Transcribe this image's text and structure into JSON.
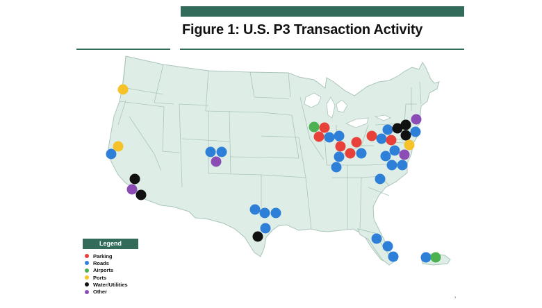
{
  "figure": {
    "title": "Figure 1: U.S. P3 Transaction Activity",
    "accent_color": "#336b5b",
    "map_fill": "#deeee7",
    "map_stroke": "#aac5b9"
  },
  "legend": {
    "title": "Legend",
    "items": [
      {
        "key": "parking",
        "label": "Parking",
        "color": "#e8413a"
      },
      {
        "key": "roads",
        "label": "Roads",
        "color": "#2e7fd8"
      },
      {
        "key": "airports",
        "label": "Airports",
        "color": "#4cb150"
      },
      {
        "key": "ports",
        "label": "Ports",
        "color": "#f6c22a"
      },
      {
        "key": "water",
        "label": "Water/Utilities",
        "color": "#111111"
      },
      {
        "key": "other",
        "label": "Other",
        "color": "#8b4db5"
      }
    ]
  },
  "markers": [
    {
      "type": "ports",
      "state": "OR"
    },
    {
      "type": "ports",
      "state": "CA-N"
    },
    {
      "type": "roads",
      "state": "CA-N"
    },
    {
      "type": "water",
      "state": "CA-S"
    },
    {
      "type": "other",
      "state": "CA-S"
    },
    {
      "type": "water",
      "state": "CA-S"
    },
    {
      "type": "roads",
      "state": "CO"
    },
    {
      "type": "roads",
      "state": "CO"
    },
    {
      "type": "other",
      "state": "CO"
    },
    {
      "type": "roads",
      "state": "TX"
    },
    {
      "type": "roads",
      "state": "TX"
    },
    {
      "type": "roads",
      "state": "TX"
    },
    {
      "type": "roads",
      "state": "TX"
    },
    {
      "type": "water",
      "state": "TX"
    },
    {
      "type": "airports",
      "state": "IL"
    },
    {
      "type": "parking",
      "state": "IL"
    },
    {
      "type": "parking",
      "state": "IN"
    },
    {
      "type": "roads",
      "state": "IN"
    },
    {
      "type": "roads",
      "state": "IN"
    },
    {
      "type": "parking",
      "state": "IN"
    },
    {
      "type": "parking",
      "state": "KY"
    },
    {
      "type": "roads",
      "state": "KY"
    },
    {
      "type": "roads",
      "state": "KY"
    },
    {
      "type": "parking",
      "state": "OH"
    },
    {
      "type": "roads",
      "state": "KY"
    },
    {
      "type": "parking",
      "state": "PA"
    },
    {
      "type": "roads",
      "state": "PA"
    },
    {
      "type": "parking",
      "state": "PA"
    },
    {
      "type": "roads",
      "state": "PA"
    },
    {
      "type": "water",
      "state": "NY"
    },
    {
      "type": "water",
      "state": "NY"
    },
    {
      "type": "water",
      "state": "NY"
    },
    {
      "type": "other",
      "state": "CT"
    },
    {
      "type": "roads",
      "state": "NJ"
    },
    {
      "type": "ports",
      "state": "NJ"
    },
    {
      "type": "roads",
      "state": "VA"
    },
    {
      "type": "roads",
      "state": "VA"
    },
    {
      "type": "other",
      "state": "VA"
    },
    {
      "type": "roads",
      "state": "VA"
    },
    {
      "type": "roads",
      "state": "VA"
    },
    {
      "type": "roads",
      "state": "SC"
    },
    {
      "type": "roads",
      "state": "FL"
    },
    {
      "type": "roads",
      "state": "FL"
    },
    {
      "type": "roads",
      "state": "FL"
    },
    {
      "type": "roads",
      "state": "PR"
    },
    {
      "type": "airports",
      "state": "PR"
    }
  ],
  "page_number": "1"
}
